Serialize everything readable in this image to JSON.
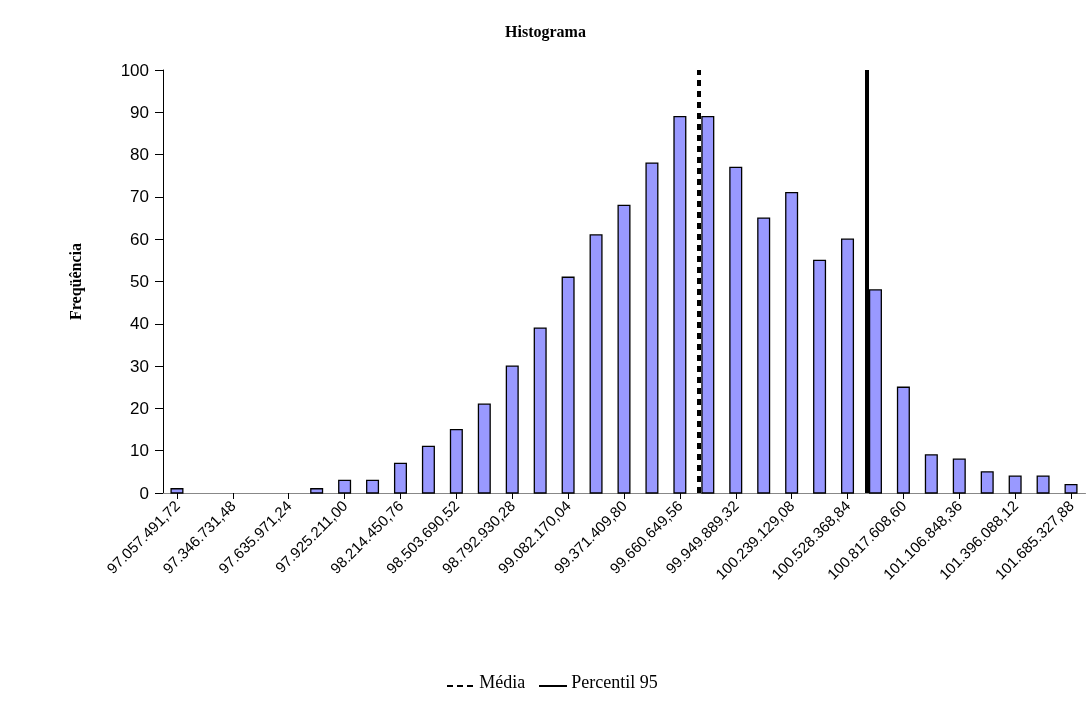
{
  "chart_data": {
    "type": "histogram",
    "title": "Histograma",
    "ylabel": "Freqüência",
    "bins": [
      96985181.78,
      97129801.66,
      97274421.54,
      97419041.42,
      97563661.3,
      97708281.18,
      97852901.06,
      97997520.94,
      98142140.82,
      98286760.7,
      98431380.58,
      98576000.46,
      98720620.34,
      98865240.22,
      99009860.1,
      99154479.98,
      99299099.86,
      99443719.74,
      99588339.62,
      99732959.5,
      99877579.38,
      100022199.26,
      100166819.14,
      100311439.02,
      100456058.9,
      100600678.78,
      100745298.66,
      100889918.54,
      101034538.42,
      101179158.3,
      101323778.18,
      101468398.06,
      101613017.94,
      101757637.82
    ],
    "values": [
      1,
      0,
      0,
      0,
      0,
      1,
      3,
      3,
      7,
      11,
      15,
      21,
      30,
      39,
      51,
      61,
      68,
      78,
      89,
      89,
      77,
      65,
      71,
      55,
      60,
      48,
      25,
      9,
      8,
      5,
      4,
      4,
      2
    ],
    "color": "#9999ff",
    "xlim": [
      96985181.78,
      101757637.82
    ],
    "xticks": [
      {
        "value": 97057491.72,
        "label": "97.057.491,72"
      },
      {
        "value": 97346731.48,
        "label": "97.346.731,48"
      },
      {
        "value": 97635971.24,
        "label": "97.635.971,24"
      },
      {
        "value": 97925211.0,
        "label": "97.925.211,00"
      },
      {
        "value": 98214450.76,
        "label": "98.214.450,76"
      },
      {
        "value": 98503690.52,
        "label": "98.503.690,52"
      },
      {
        "value": 98792930.28,
        "label": "98.792.930,28"
      },
      {
        "value": 99082170.04,
        "label": "99.082.170,04"
      },
      {
        "value": 99371409.8,
        "label": "99.371.409,80"
      },
      {
        "value": 99660649.56,
        "label": "99.660.649,56"
      },
      {
        "value": 99949889.32,
        "label": "99.949.889,32"
      },
      {
        "value": 100239129.08,
        "label": "100.239.129,08"
      },
      {
        "value": 100528368.84,
        "label": "100.528.368,84"
      },
      {
        "value": 100817608.6,
        "label": "100.817.608,60"
      },
      {
        "value": 101106848.36,
        "label": "101.106.848,36"
      },
      {
        "value": 101396088.12,
        "label": "101.396.088,12"
      },
      {
        "value": 101685327.88,
        "label": "101.685.327,88"
      }
    ],
    "ylim": [
      0,
      100
    ],
    "yticks": [
      0,
      10,
      20,
      30,
      40,
      50,
      60,
      70,
      80,
      90,
      100
    ],
    "grid": false,
    "legend": "bottom",
    "ref_lines": [
      {
        "axis": "x",
        "value": 99760000,
        "label": "Média",
        "line_style": "dashed",
        "color": "#000000"
      },
      {
        "axis": "x",
        "value": 100630000,
        "label": "Percentil 95",
        "line_style": "solid",
        "color": "#000000"
      }
    ]
  }
}
